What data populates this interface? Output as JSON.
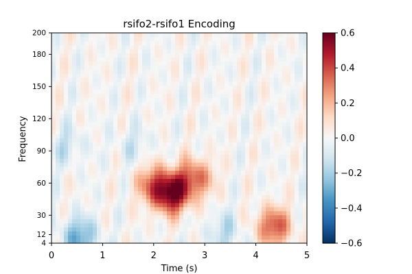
{
  "chart_data": {
    "type": "heatmap",
    "title": "rsifo2-rsifo1 Encoding",
    "xlabel": "Time (s)",
    "ylabel": "Frequency",
    "xlim": [
      0,
      5
    ],
    "ylim": [
      4,
      200
    ],
    "x_ticks": [
      0,
      1,
      2,
      3,
      4,
      5
    ],
    "x_tick_labels": [
      "0",
      "1",
      "2",
      "3",
      "4",
      "5"
    ],
    "y_ticks": [
      4,
      12,
      30,
      60,
      90,
      120,
      150,
      180,
      200
    ],
    "y_tick_labels": [
      "4",
      "12",
      "30",
      "60",
      "90",
      "120",
      "150",
      "180",
      "200"
    ],
    "colormap": "RdBu_r",
    "colorbar": {
      "vmin": -0.6,
      "vmax": 0.6,
      "ticks": [
        -0.6,
        -0.4,
        -0.2,
        0.0,
        0.2,
        0.4,
        0.6
      ],
      "tick_labels": [
        "−0.6",
        "−0.4",
        "−0.2",
        "0.0",
        "0.2",
        "0.4",
        "0.6"
      ]
    },
    "features": [
      {
        "t": 2.35,
        "f": 50,
        "value": 0.55
      },
      {
        "t": 2.0,
        "f": 60,
        "value": 0.3
      },
      {
        "t": 2.8,
        "f": 65,
        "value": 0.35
      },
      {
        "t": 4.35,
        "f": 20,
        "value": 0.38
      },
      {
        "t": 0.55,
        "f": 10,
        "value": -0.3
      },
      {
        "t": 3.4,
        "f": 15,
        "value": -0.15
      },
      {
        "t": 0.3,
        "f": 95,
        "value": -0.12
      },
      {
        "t": 1.6,
        "f": 95,
        "value": -0.1
      }
    ]
  }
}
